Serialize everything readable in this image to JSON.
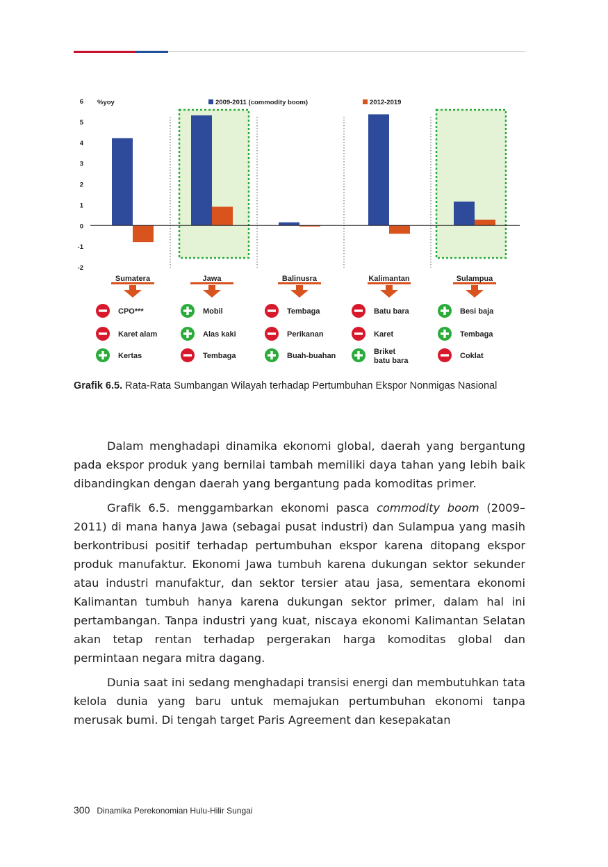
{
  "chart_data": {
    "type": "bar",
    "title": "",
    "ylabel": "%yoy",
    "ylim": [
      -2,
      6
    ],
    "yticks": [
      "6",
      "5",
      "4",
      "3",
      "2",
      "1",
      "0",
      "-1",
      "-2"
    ],
    "categories": [
      "Sumatera",
      "Jawa",
      "Balinusra",
      "Kalimantan",
      "Sulampua"
    ],
    "series": [
      {
        "name": "2009-2011 (commodity boom)",
        "color": "#2e4a9a",
        "values": [
          4.2,
          5.3,
          0.15,
          5.35,
          1.15
        ]
      },
      {
        "name": "2012-2019",
        "color": "#d9531e",
        "values": [
          -0.8,
          0.9,
          -0.05,
          -0.4,
          0.28
        ]
      }
    ],
    "highlighted_regions": [
      "Jawa",
      "Sulampua"
    ],
    "commodities": [
      [
        {
          "sign": "minus",
          "label": "CPO***"
        },
        {
          "sign": "minus",
          "label": "Karet alam"
        },
        {
          "sign": "plus",
          "label": "Kertas"
        }
      ],
      [
        {
          "sign": "plus",
          "label": "Mobil"
        },
        {
          "sign": "plus",
          "label": "Alas kaki"
        },
        {
          "sign": "minus",
          "label": "Tembaga"
        }
      ],
      [
        {
          "sign": "minus",
          "label": "Tembaga"
        },
        {
          "sign": "minus",
          "label": "Perikanan"
        },
        {
          "sign": "plus",
          "label": "Buah-buahan"
        }
      ],
      [
        {
          "sign": "minus",
          "label": "Batu bara"
        },
        {
          "sign": "minus",
          "label": "Karet"
        },
        {
          "sign": "plus",
          "label": "Briket batu bara"
        }
      ],
      [
        {
          "sign": "plus",
          "label": "Besi baja"
        },
        {
          "sign": "plus",
          "label": "Tembaga"
        },
        {
          "sign": "minus",
          "label": "Coklat"
        }
      ]
    ],
    "colors": {
      "plus": "#2bab3a",
      "minus": "#d7192b",
      "arrow": "#d9531e",
      "highlight_fill": "#e4f3d5",
      "highlight_border": "#2bab3a"
    }
  },
  "caption": {
    "label": "Grafik 6.5.",
    "text": " Rata-Rata Sumbangan Wilayah terhadap Pertumbuhan Ekspor Nonmigas Nasional"
  },
  "paragraphs": {
    "p1": "Dalam menghadapi dinamika ekonomi global, daerah yang bergantung pada ekspor produk yang bernilai tambah memiliki daya tahan yang lebih baik dibandingkan dengan daerah yang bergantung pada komoditas primer.",
    "p2_start": "Grafik 6.5. menggambarkan ekonomi pasca ",
    "p2_italic": "commodity boom",
    "p2_end": " (2009–2011) di mana hanya Jawa (sebagai pusat industri) dan Sulampua yang masih berkontribusi positif terhadap pertumbuhan ekspor karena ditopang ekspor produk manufaktur. Ekonomi Jawa tumbuh karena dukungan sektor sekunder atau industri manufaktur, dan sektor tersier atau jasa, sementara ekonomi Kalimantan tumbuh hanya karena dukungan sektor primer, dalam hal ini pertambangan. Tanpa industri yang kuat, niscaya ekonomi Kalimantan Selatan akan tetap rentan terhadap pergerakan harga komoditas global dan permintaan negara mitra dagang.",
    "p3": "Dunia saat ini sedang menghadapi transisi energi dan membutuhkan tata kelola dunia yang baru untuk memajukan pertumbuhan ekonomi tanpa merusak bumi. Di tengah target Paris Agreement dan kesepakatan"
  },
  "footer": {
    "page_number": "300",
    "book_title": "Dinamika Perekonomian Hulu-Hilir Sungai"
  }
}
